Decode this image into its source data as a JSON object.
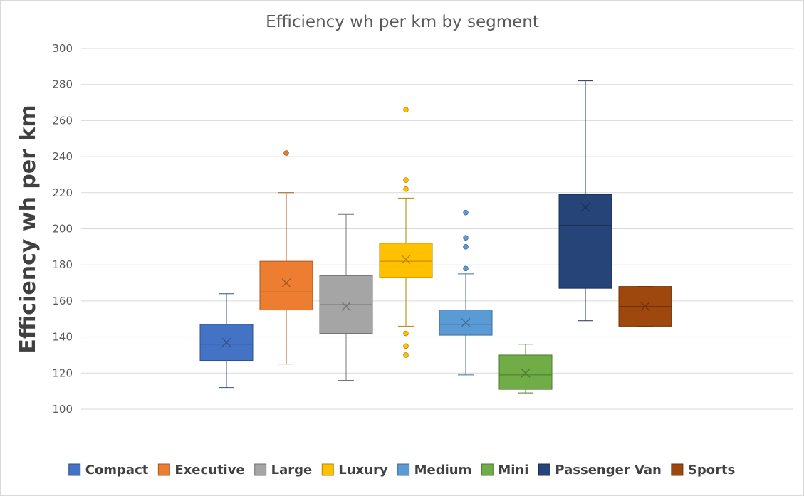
{
  "chart_data": {
    "type": "boxplot",
    "title": "Efficiency wh per km by segment",
    "xlabel": "",
    "ylabel": "Efficiency wh per km",
    "ylim": [
      100,
      300
    ],
    "yticks": [
      100,
      120,
      140,
      160,
      180,
      200,
      220,
      240,
      260,
      280,
      300
    ],
    "grid": true,
    "legend_position": "bottom",
    "series": [
      {
        "name": "Compact",
        "color": "#4472C4",
        "whisker_low": 112,
        "q1": 127,
        "median": 136,
        "q3": 147,
        "whisker_high": 164,
        "mean": 137,
        "outliers": []
      },
      {
        "name": "Executive",
        "color": "#ED7D31",
        "whisker_low": 125,
        "q1": 155,
        "median": 165,
        "q3": 182,
        "whisker_high": 220,
        "mean": 170,
        "outliers": [
          242
        ]
      },
      {
        "name": "Large",
        "color": "#A5A5A5",
        "whisker_low": 116,
        "q1": 142,
        "median": 158,
        "q3": 174,
        "whisker_high": 208,
        "mean": 157,
        "outliers": []
      },
      {
        "name": "Luxury",
        "color": "#FFC000",
        "whisker_low": 146,
        "q1": 173,
        "median": 182,
        "q3": 192,
        "whisker_high": 217,
        "mean": 183,
        "outliers": [
          266,
          227,
          222,
          142,
          135,
          130
        ]
      },
      {
        "name": "Medium",
        "color": "#5B9BD5",
        "whisker_low": 119,
        "q1": 141,
        "median": 147,
        "q3": 155,
        "whisker_high": 175,
        "mean": 148,
        "outliers": [
          209,
          195,
          190,
          178
        ]
      },
      {
        "name": "Mini",
        "color": "#70AD47",
        "whisker_low": 109,
        "q1": 111,
        "median": 119,
        "q3": 130,
        "whisker_high": 136,
        "mean": 120,
        "outliers": []
      },
      {
        "name": "Passenger Van",
        "color": "#264478",
        "whisker_low": 149,
        "q1": 167,
        "median": 202,
        "q3": 219,
        "whisker_high": 282,
        "mean": 212,
        "outliers": []
      },
      {
        "name": "Sports",
        "color": "#9E480E",
        "whisker_low": 146,
        "q1": 146,
        "median": 157,
        "q3": 168,
        "whisker_high": 168,
        "mean": 157,
        "outliers": []
      }
    ]
  }
}
